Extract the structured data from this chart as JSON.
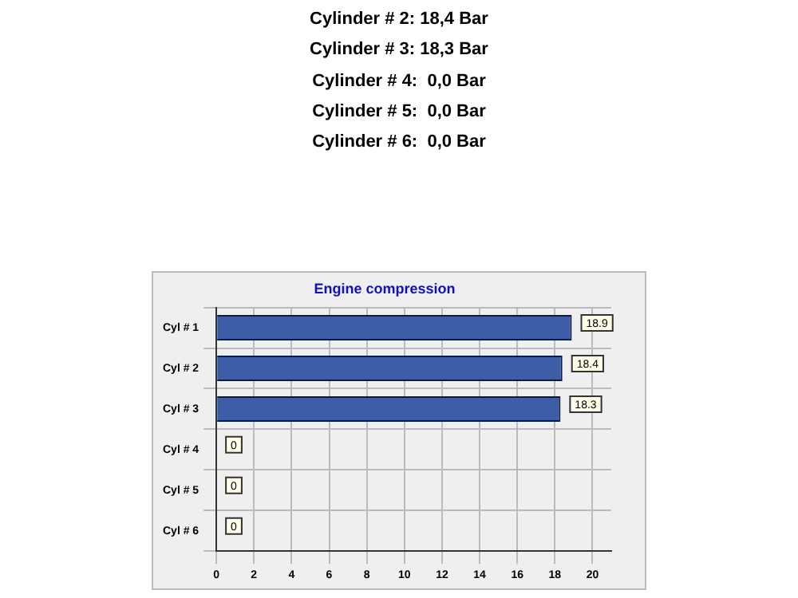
{
  "chart_data": {
    "type": "bar",
    "orientation": "horizontal",
    "title": "Engine compression",
    "categories": [
      "Cyl # 1",
      "Cyl # 2",
      "Cyl # 3",
      "Cyl # 4",
      "Cyl # 5",
      "Cyl # 6"
    ],
    "values": [
      18.9,
      18.4,
      18.3,
      0,
      0,
      0
    ],
    "color": "#3d5ea6",
    "xlim": [
      0,
      21
    ],
    "xticks": [
      0,
      2,
      4,
      6,
      8,
      10,
      12,
      14,
      16,
      18,
      20
    ],
    "grid": true,
    "legend": false,
    "data_labels": true,
    "annotations": [
      "Cylinder # 2: 18,4 Bar",
      "Cylinder # 3: 18,3 Bar",
      "Cylinder # 4:  0,0 Bar",
      "Cylinder # 5:  0,0 Bar",
      "Cylinder # 6:  0,0 Bar"
    ]
  }
}
